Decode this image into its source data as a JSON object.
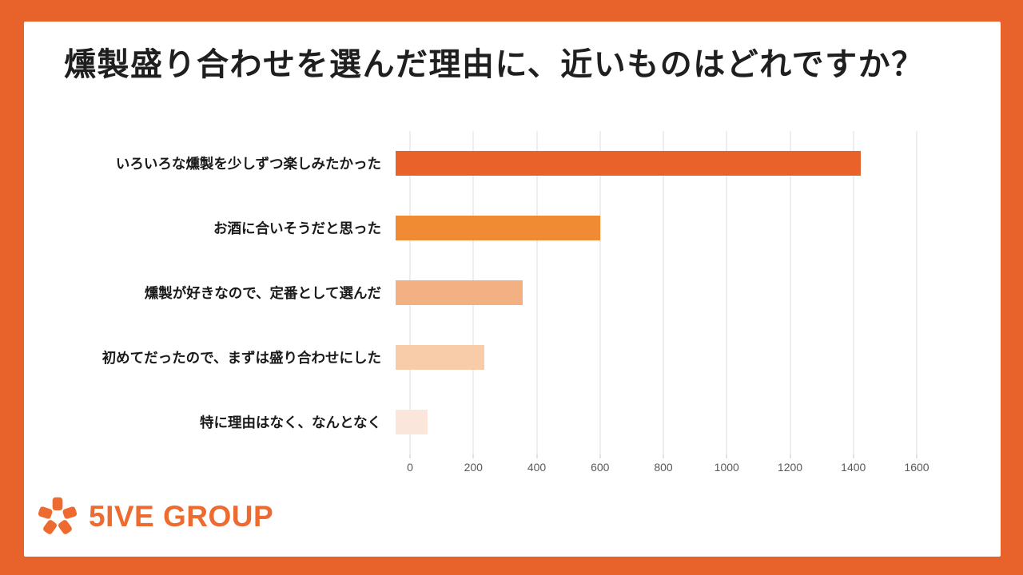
{
  "frame": {
    "border_color": "#E8622B",
    "content_background": "#FFFFFF"
  },
  "title": "燻製盛り合わせを選んだ理由に、近いものはどれですか？",
  "chart_data": {
    "type": "bar",
    "orientation": "horizontal",
    "title": "燻製盛り合わせを選んだ理由に、近いものはどれですか？",
    "categories": [
      "いろいろな燻製を少しずつ楽しみたかった",
      "お酒に合いそうだと思った",
      "燻製が好きなので、定番として選んだ",
      "初めてだったので、まずは盛り合わせにした",
      "特に理由はなく、なんとなく"
    ],
    "values": [
      1470,
      645,
      400,
      280,
      100
    ],
    "bar_colors": [
      "#E9622A",
      "#F08B33",
      "#F3B183",
      "#F8CBA9",
      "#FBE6DB"
    ],
    "xlabel": "",
    "ylabel": "",
    "xlim": [
      0,
      1600
    ],
    "x_ticks": [
      0,
      200,
      400,
      600,
      800,
      1000,
      1200,
      1400,
      1600
    ],
    "grid": true,
    "gridline_color": "#DEDEDE",
    "legend": "none"
  },
  "logo": {
    "text": "5IVE GROUP",
    "color": "#ED6B30",
    "icon": "five-petal-asterisk-icon"
  }
}
